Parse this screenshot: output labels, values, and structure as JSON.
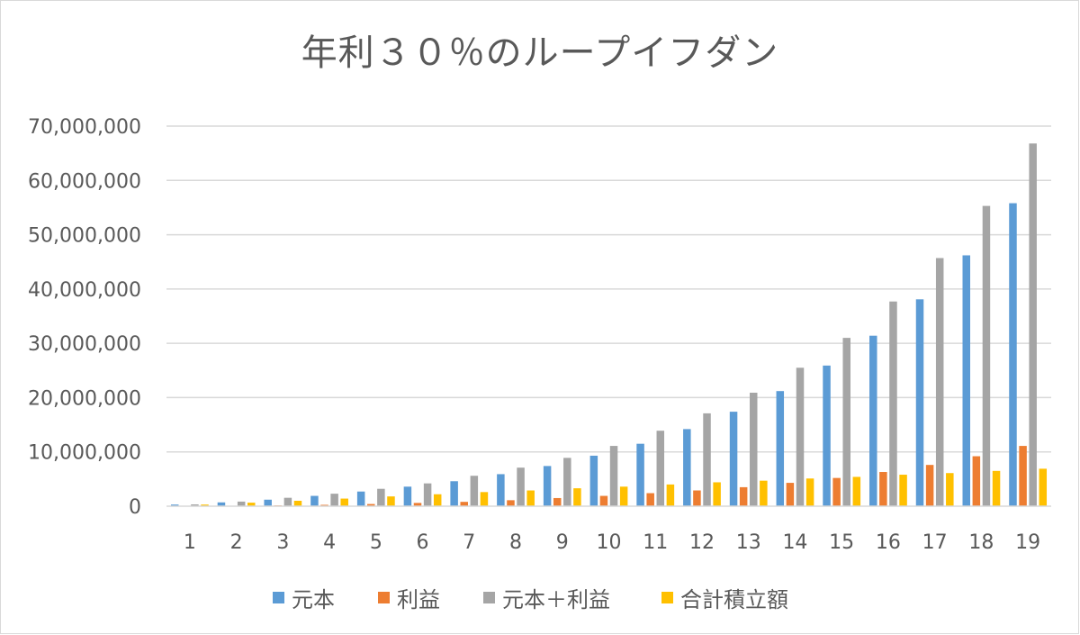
{
  "chart_data": {
    "type": "bar",
    "title": "年利３０％のループイフダン",
    "xlabel": "",
    "ylabel": "",
    "categories": [
      "1",
      "2",
      "3",
      "4",
      "5",
      "6",
      "7",
      "8",
      "9",
      "10",
      "11",
      "12",
      "13",
      "14",
      "15",
      "16",
      "17",
      "18",
      "19"
    ],
    "ylim": [
      0,
      70000000
    ],
    "yticks": [
      0,
      10000000,
      20000000,
      30000000,
      40000000,
      50000000,
      60000000,
      70000000
    ],
    "ytick_labels": [
      "0",
      "10,000,000",
      "20,000,000",
      "30,000,000",
      "40,000,000",
      "50,000,000",
      "60,000,000",
      "70,000,000"
    ],
    "grid": true,
    "legend_position": "bottom",
    "series": [
      {
        "name": "元本",
        "color": "#5b9bd5",
        "values": [
          300000,
          700000,
          1200000,
          1900000,
          2700000,
          3600000,
          4600000,
          5900000,
          7400000,
          9300000,
          11500000,
          14200000,
          17400000,
          21200000,
          25900000,
          31400000,
          38100000,
          46200000,
          55800000
        ]
      },
      {
        "name": "利益",
        "color": "#ed7d31",
        "values": [
          30000,
          80000,
          150000,
          250000,
          400000,
          600000,
          800000,
          1100000,
          1500000,
          1900000,
          2400000,
          2900000,
          3500000,
          4300000,
          5200000,
          6300000,
          7600000,
          9200000,
          11100000
        ]
      },
      {
        "name": "元本＋利益",
        "color": "#a5a5a5",
        "values": [
          330000,
          850000,
          1550000,
          2300000,
          3200000,
          4200000,
          5600000,
          7100000,
          8900000,
          11100000,
          13900000,
          17100000,
          20900000,
          25500000,
          31000000,
          37700000,
          45700000,
          55300000,
          66800000
        ]
      },
      {
        "name": "合計積立額",
        "color": "#ffc000",
        "values": [
          300000,
          650000,
          1000000,
          1400000,
          1800000,
          2200000,
          2600000,
          2900000,
          3300000,
          3600000,
          4000000,
          4400000,
          4700000,
          5100000,
          5400000,
          5800000,
          6100000,
          6500000,
          6900000
        ]
      }
    ]
  }
}
